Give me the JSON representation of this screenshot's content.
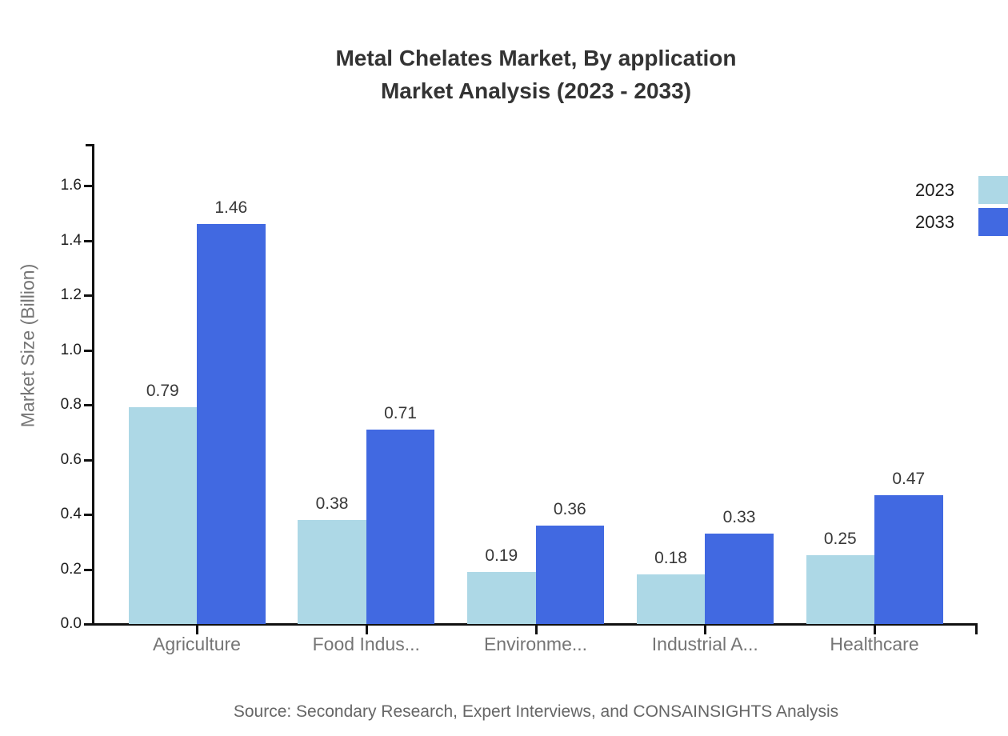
{
  "title": {
    "line1": "Metal Chelates Market, By application",
    "line2": "Market Analysis (2023 - 2033)"
  },
  "legend": [
    {
      "label": "2023",
      "color": "#ADD8E6"
    },
    {
      "label": "2033",
      "color": "#4169E1"
    }
  ],
  "y_axis": {
    "title": "Market Size (Billion)",
    "ticks": [
      "0.0",
      "0.2",
      "0.4",
      "0.6",
      "0.8",
      "1.0",
      "1.2",
      "1.4",
      "1.6"
    ]
  },
  "source": "Source: Secondary Research, Expert Interviews, and CONSAINSIGHTS Analysis",
  "chart_data": {
    "type": "bar",
    "title": "Metal Chelates Market, By application Market Analysis (2023 - 2033)",
    "categories": [
      "Agriculture",
      "Food Indus...",
      "Environme...",
      "Industrial A...",
      "Healthcare"
    ],
    "series": [
      {
        "name": "2023",
        "color": "#ADD8E6",
        "values": [
          0.79,
          0.38,
          0.19,
          0.18,
          0.25
        ]
      },
      {
        "name": "2033",
        "color": "#4169E1",
        "values": [
          1.46,
          0.71,
          0.36,
          0.33,
          0.47
        ]
      }
    ],
    "xlabel": "",
    "ylabel": "Market Size (Billion)",
    "ylim": [
      0,
      1.75
    ],
    "y_tick_step": 0.2,
    "value_labels": true,
    "grid": false,
    "legend_position": "top-right"
  }
}
